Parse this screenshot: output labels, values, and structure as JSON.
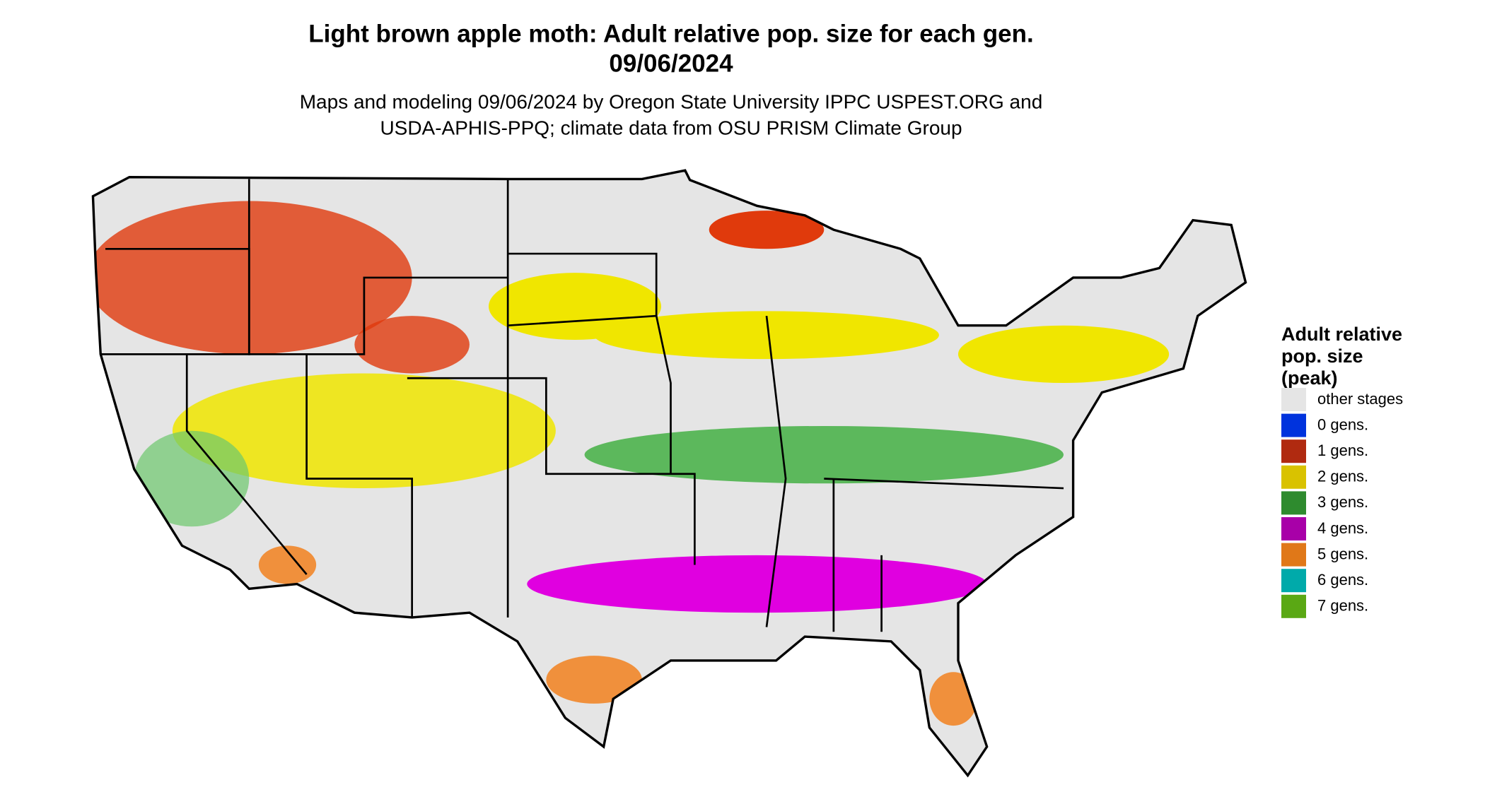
{
  "header": {
    "title_lines": [
      "Light brown apple moth: Adult relative pop. size for each gen.",
      "09/06/2024"
    ],
    "subtitle_lines": [
      "Maps and modeling 09/06/2024 by Oregon State University IPPC USPEST.ORG and",
      "USDA-APHIS-PPQ; climate data from OSU PRISM Climate Group"
    ]
  },
  "legend": {
    "title_lines": [
      "Adult relative",
      "pop. size",
      "(peak)"
    ],
    "items": [
      {
        "label": "other stages",
        "color": "#e5e5e5"
      },
      {
        "label": "0 gens.",
        "color": "#0033dd"
      },
      {
        "label": "1 gens.",
        "color": "#b02a10"
      },
      {
        "label": "2 gens.",
        "color": "#d9c200"
      },
      {
        "label": "3 gens.",
        "color": "#2e8b2e"
      },
      {
        "label": "4 gens.",
        "color": "#a800a8"
      },
      {
        "label": "5 gens.",
        "color": "#e07818"
      },
      {
        "label": "6 gens.",
        "color": "#00aaaa"
      },
      {
        "label": "7 gens.",
        "color": "#5aa814"
      }
    ]
  }
}
